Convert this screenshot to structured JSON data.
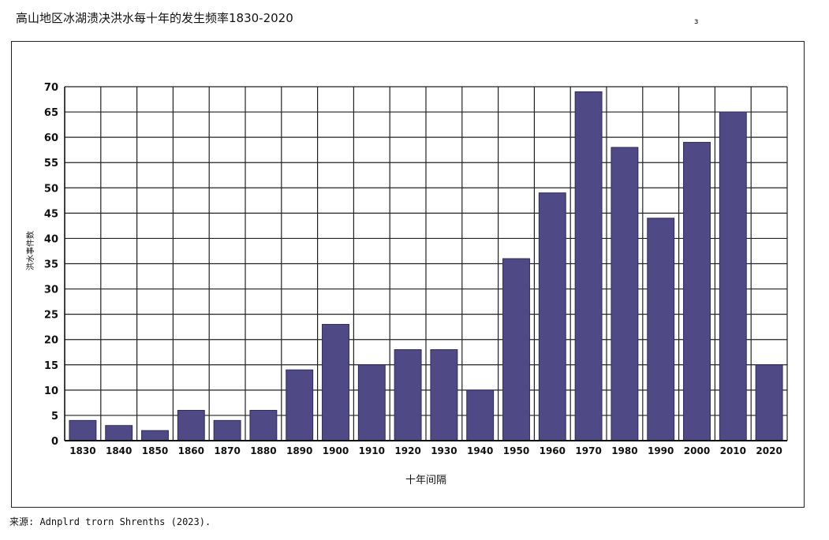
{
  "title": "高山地区冰湖溃决洪水每十年的发生频率1830-2020",
  "corner_mark": "ɜ",
  "source": "来源: Adnplrd trorn Shrenths (2023).",
  "colors": {
    "bar": "#4f4a86",
    "grid": "#222222",
    "axis": "#111111"
  },
  "chart_data": {
    "type": "bar",
    "title": "高山地区冰湖溃决洪水每十年的发生频率1830-2020",
    "xlabel": "十年间隔",
    "ylabel": "洪水事件数",
    "categories": [
      "1830",
      "1840",
      "1850",
      "1860",
      "1870",
      "1880",
      "1890",
      "1900",
      "1910",
      "1920",
      "1930",
      "1940",
      "1950",
      "1960",
      "1970",
      "1980",
      "1990",
      "2000",
      "2010",
      "2020"
    ],
    "values": [
      4,
      3,
      2,
      6,
      4,
      6,
      14,
      23,
      15,
      18,
      18,
      10,
      36,
      49,
      69,
      58,
      44,
      59,
      65,
      15
    ],
    "ylim": [
      0,
      70
    ],
    "yticks": [
      0,
      5,
      10,
      15,
      20,
      25,
      30,
      35,
      40,
      45,
      50,
      55,
      60,
      65,
      70
    ],
    "grid": true
  }
}
